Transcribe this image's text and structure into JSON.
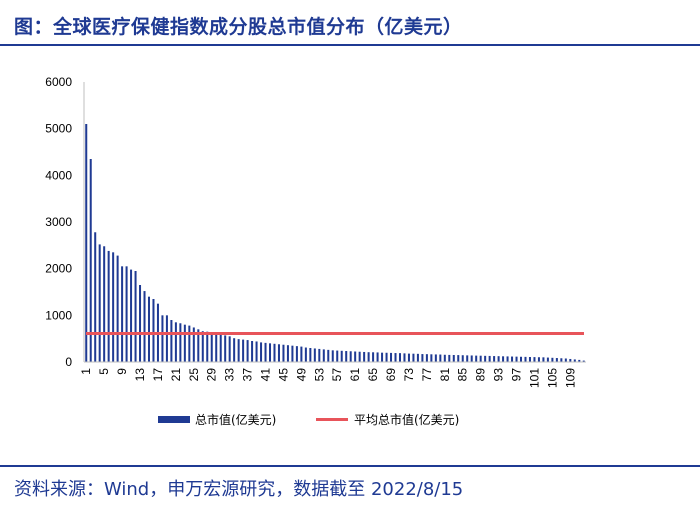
{
  "title": "图：全球医疗保健指数成分股总市值分布（亿美元）",
  "source": "资料来源：Wind，申万宏源研究，数据截至 2022/8/15",
  "chart_data": {
    "type": "bar",
    "colors": {
      "bar": "#1f3a93",
      "average_line": "#e8545a",
      "axis": "#bfbfbf"
    },
    "ylim": [
      0,
      6000
    ],
    "yticks": [
      0,
      1000,
      2000,
      3000,
      4000,
      5000,
      6000
    ],
    "xticks": [
      1,
      5,
      9,
      13,
      17,
      21,
      25,
      29,
      33,
      37,
      41,
      45,
      49,
      53,
      57,
      61,
      65,
      69,
      73,
      77,
      81,
      85,
      89,
      93,
      97,
      101,
      105,
      109
    ],
    "categories": [
      1,
      2,
      3,
      4,
      5,
      6,
      7,
      8,
      9,
      10,
      11,
      12,
      13,
      14,
      15,
      16,
      17,
      18,
      19,
      20,
      21,
      22,
      23,
      24,
      25,
      26,
      27,
      28,
      29,
      30,
      31,
      32,
      33,
      34,
      35,
      36,
      37,
      38,
      39,
      40,
      41,
      42,
      43,
      44,
      45,
      46,
      47,
      48,
      49,
      50,
      51,
      52,
      53,
      54,
      55,
      56,
      57,
      58,
      59,
      60,
      61,
      62,
      63,
      64,
      65,
      66,
      67,
      68,
      69,
      70,
      71,
      72,
      73,
      74,
      75,
      76,
      77,
      78,
      79,
      80,
      81,
      82,
      83,
      84,
      85,
      86,
      87,
      88,
      89,
      90,
      91,
      92,
      93,
      94,
      95,
      96,
      97,
      98,
      99,
      100,
      101,
      102,
      103,
      104,
      105,
      106,
      107,
      108,
      109,
      110,
      111,
      112
    ],
    "series": [
      {
        "name": "总市值(亿美元)",
        "kind": "bar",
        "values": [
          5100,
          4350,
          2780,
          2520,
          2480,
          2380,
          2350,
          2280,
          2050,
          2050,
          1980,
          1950,
          1650,
          1520,
          1400,
          1350,
          1250,
          1000,
          1000,
          900,
          850,
          830,
          800,
          780,
          740,
          700,
          660,
          650,
          620,
          600,
          590,
          570,
          550,
          510,
          490,
          480,
          470,
          450,
          440,
          420,
          410,
          400,
          390,
          380,
          370,
          360,
          350,
          340,
          330,
          310,
          300,
          290,
          280,
          270,
          260,
          250,
          245,
          240,
          235,
          230,
          225,
          220,
          215,
          210,
          208,
          205,
          200,
          198,
          195,
          192,
          190,
          185,
          180,
          178,
          175,
          170,
          168,
          165,
          162,
          160,
          155,
          152,
          150,
          148,
          145,
          142,
          140,
          137,
          135,
          132,
          130,
          127,
          125,
          122,
          120,
          117,
          115,
          112,
          110,
          107,
          105,
          102,
          100,
          95,
          90,
          85,
          80,
          75,
          65,
          55,
          45,
          30
        ]
      },
      {
        "name": "平均总市值(亿美元)",
        "kind": "line",
        "value": 610
      }
    ]
  }
}
